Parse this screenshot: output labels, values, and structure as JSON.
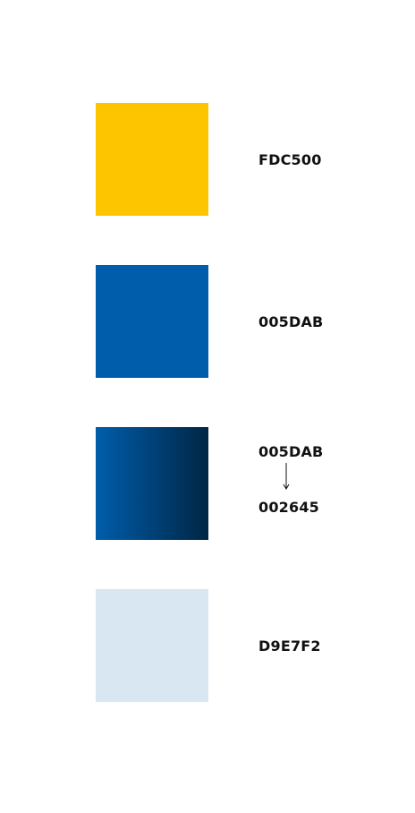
{
  "swatches": [
    {
      "code": "FDC500",
      "color": "#FDC500"
    },
    {
      "code": "005DAB",
      "color": "#005DAB"
    },
    {
      "code_from": "005DAB",
      "code_to": "002645",
      "color_from": "#005DAB",
      "color_to": "#002645"
    },
    {
      "code": "D9E7F2",
      "color": "#D9E7F2"
    }
  ]
}
